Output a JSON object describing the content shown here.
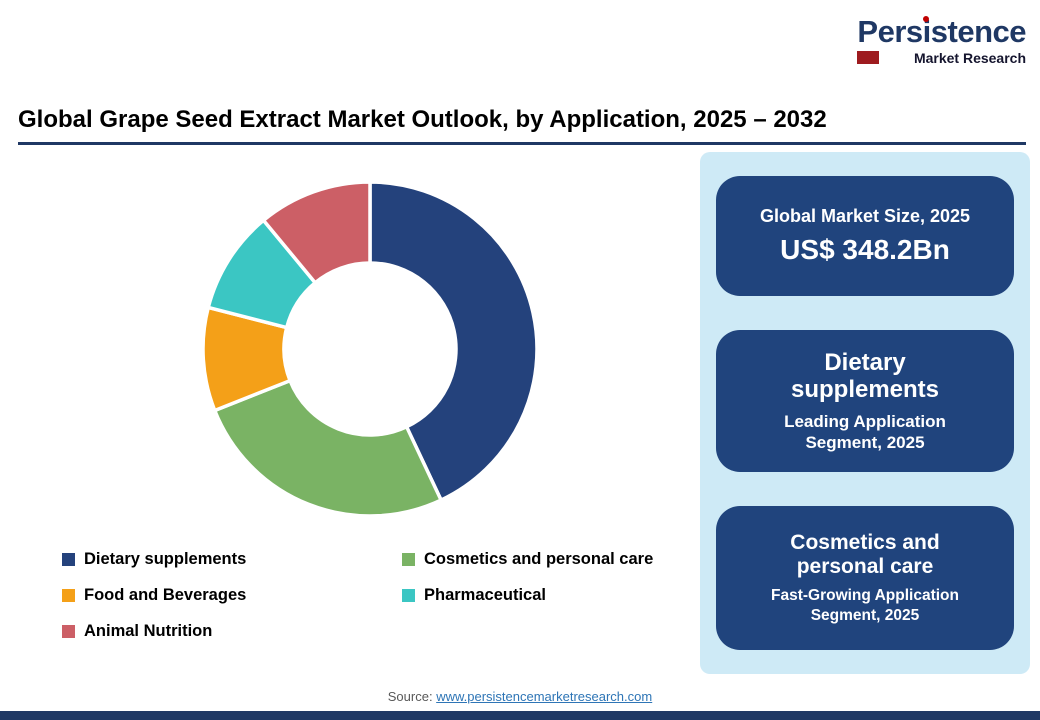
{
  "logo": {
    "brand_pre": "Pers",
    "brand_i": "i",
    "brand_post": "stence",
    "subtitle": "Market Research"
  },
  "header": {
    "title": "Global Grape Seed Extract Market Outlook, by Application, 2025 – 2032"
  },
  "chart_data": {
    "type": "pie",
    "subtype": "donut",
    "categories": [
      "Dietary supplements",
      "Cosmetics and personal care",
      "Food and Beverages",
      "Pharmaceutical",
      "Animal Nutrition"
    ],
    "values": [
      43,
      26,
      10,
      10,
      11
    ],
    "colors": [
      "#24427C",
      "#7AB364",
      "#F4A018",
      "#3BC6C3",
      "#CC5F66"
    ],
    "start_angle_deg": 0,
    "direction": "clockwise",
    "legend_position": "bottom",
    "data_labels": "none"
  },
  "sidebar": {
    "background": "#CEEAF6",
    "card_color": "#20447D",
    "cards": [
      {
        "title": "Global Market Size, 2025",
        "value": "US$ 348.2Bn"
      },
      {
        "title": "Dietary supplements",
        "subtitle": "Leading Application Segment, 2025"
      },
      {
        "title": "Cosmetics and personal care",
        "subtitle": "Fast-Growing Application Segment, 2025"
      }
    ]
  },
  "footer": {
    "source_label": "Source: ",
    "source_link": "www.persistencemarketresearch.com"
  }
}
